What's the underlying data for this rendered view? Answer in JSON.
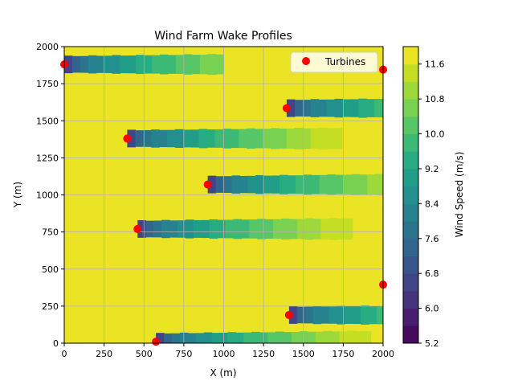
{
  "chart_data": {
    "type": "heatmap",
    "title": "Wind Farm Wake Profiles",
    "xlabel": "X (m)",
    "ylabel": "Y (m)",
    "xlim": [
      0,
      2000
    ],
    "ylim": [
      0,
      2000
    ],
    "x_ticks": [
      0,
      250,
      500,
      750,
      1000,
      1250,
      1500,
      1750,
      2000
    ],
    "y_ticks": [
      0,
      250,
      500,
      750,
      1000,
      1250,
      1500,
      1750,
      2000
    ],
    "grid": true,
    "background_speed": 12.0,
    "colorbar": {
      "label": "Wind Speed (m/s)",
      "range": [
        5.2,
        12.0
      ],
      "levels": 17,
      "ticks": [
        5.2,
        6.0,
        6.8,
        7.6,
        8.4,
        9.2,
        10.0,
        10.8,
        11.6
      ],
      "colormap": [
        "#440154",
        "#482071",
        "#433e85",
        "#38588c",
        "#2d708e",
        "#25858e",
        "#1e9b8a",
        "#2ab07f",
        "#52c569",
        "#86d549",
        "#c2df23",
        "#fde725"
      ]
    },
    "legend": {
      "entries": [
        "Turbines"
      ],
      "placement": "upper-right",
      "marker_color": "#ff0000"
    },
    "turbines": [
      {
        "x": 0,
        "y": 1880,
        "wake_end_x": 1000
      },
      {
        "x": 2000,
        "y": 1845,
        "wake_end_x": 2000
      },
      {
        "x": 1395,
        "y": 1585,
        "wake_end_x": 2000
      },
      {
        "x": 395,
        "y": 1380,
        "wake_end_x": 2000
      },
      {
        "x": 900,
        "y": 1070,
        "wake_end_x": 2000
      },
      {
        "x": 460,
        "y": 770,
        "wake_end_x": 2000
      },
      {
        "x": 2000,
        "y": 395,
        "wake_end_x": 2000
      },
      {
        "x": 1410,
        "y": 190,
        "wake_end_x": 2000
      },
      {
        "x": 575,
        "y": 10,
        "wake_end_x": 2000
      }
    ],
    "wake_profile": {
      "min_speed": 6.0,
      "recovery_distance_for_background": 1550,
      "half_width_m": 55
    }
  }
}
